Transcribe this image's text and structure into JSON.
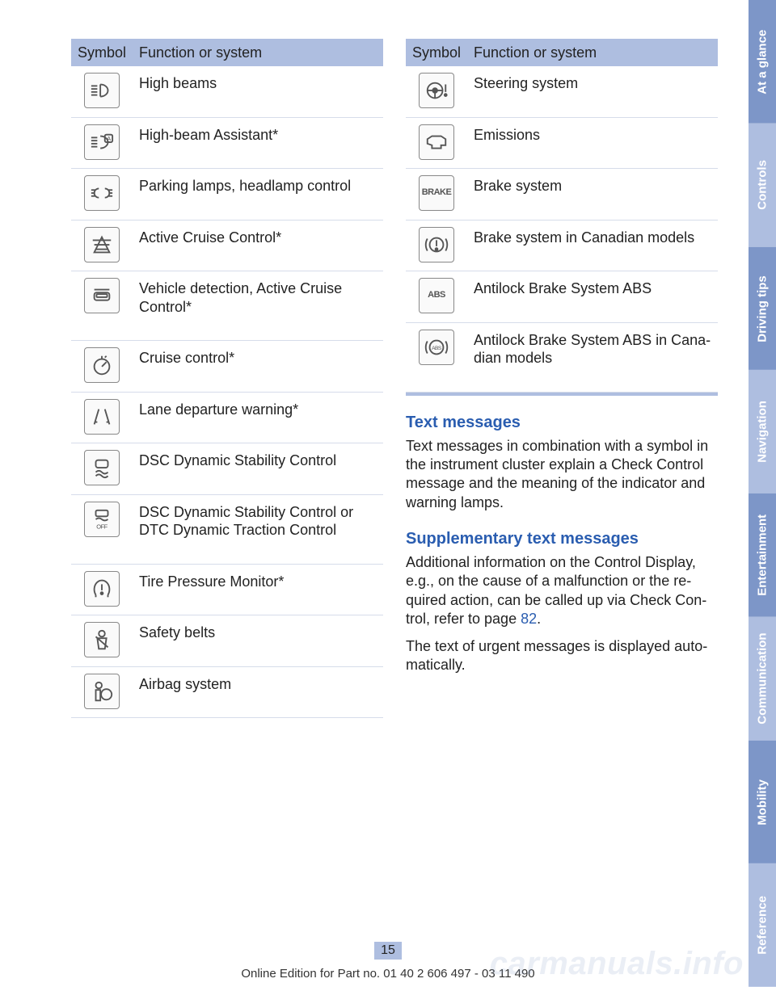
{
  "colors": {
    "header_bg": "#aebee0",
    "row_border": "#d6dcea",
    "heading_blue": "#2a5db0",
    "tab_light": "#aebee0",
    "tab_dark": "#7d96c8",
    "tab_text": "#ffffff"
  },
  "left_table": {
    "header": {
      "col1": "Symbol",
      "col2": "Function or system"
    },
    "rows": [
      {
        "icon": "high-beam-icon",
        "text": "High beams"
      },
      {
        "icon": "high-beam-assist-icon",
        "text": "High-beam Assistant*"
      },
      {
        "icon": "parking-lamps-icon",
        "text": "Parking lamps, headlamp control"
      },
      {
        "icon": "active-cruise-icon",
        "text": "Active Cruise Control*"
      },
      {
        "icon": "vehicle-detect-icon",
        "text": "Vehicle detection, Active Cruise Control*"
      },
      {
        "icon": "cruise-control-icon",
        "text": "Cruise control*"
      },
      {
        "icon": "lane-departure-icon",
        "text": "Lane departure warning*"
      },
      {
        "icon": "dsc-icon",
        "text": "DSC Dynamic Stability Control"
      },
      {
        "icon": "dsc-off-icon",
        "text": "DSC Dynamic Stability Control or DTC Dynamic Traction Control"
      },
      {
        "icon": "tpm-icon",
        "text": "Tire Pressure Monitor*"
      },
      {
        "icon": "seatbelt-icon",
        "text": "Safety belts"
      },
      {
        "icon": "airbag-icon",
        "text": "Airbag system"
      }
    ]
  },
  "right_table": {
    "header": {
      "col1": "Symbol",
      "col2": "Function or system"
    },
    "rows": [
      {
        "icon": "steering-icon",
        "text": "Steering system"
      },
      {
        "icon": "emissions-icon",
        "text": "Emissions"
      },
      {
        "icon": "brake-text-icon",
        "icon_text": "BRAKE",
        "text": "Brake system"
      },
      {
        "icon": "brake-ca-icon",
        "text": "Brake system in Canadian models"
      },
      {
        "icon": "abs-text-icon",
        "icon_text": "ABS",
        "text": "Antilock Brake System ABS"
      },
      {
        "icon": "abs-ca-icon",
        "text": "Antilock Brake System ABS in Cana­dian models"
      }
    ]
  },
  "sections": {
    "text_msg": {
      "title": "Text messages",
      "body": "Text messages in combination with a symbol in the instrument cluster explain a Check Control message and the meaning of the indicator and warning lamps."
    },
    "supp": {
      "title": "Supplementary text messages",
      "body1_a": "Additional information on the Control Display, e.g., on the cause of a malfunction or the re­quired action, can be called up via Check Con­trol, refer to page ",
      "body1_ref": "82",
      "body1_b": ".",
      "body2": "The text of urgent messages is displayed auto­matically."
    }
  },
  "tabs": [
    {
      "label": "At a glance",
      "shade": "dark"
    },
    {
      "label": "Controls",
      "shade": "light"
    },
    {
      "label": "Driving tips",
      "shade": "dark"
    },
    {
      "label": "Navigation",
      "shade": "light"
    },
    {
      "label": "Entertainment",
      "shade": "dark"
    },
    {
      "label": "Communication",
      "shade": "light"
    },
    {
      "label": "Mobility",
      "shade": "dark"
    },
    {
      "label": "Reference",
      "shade": "light"
    }
  ],
  "page_number": "15",
  "footer": "Online Edition for Part no. 01 40 2 606 497 - 03 11 490",
  "watermark": "carmanuals.info"
}
